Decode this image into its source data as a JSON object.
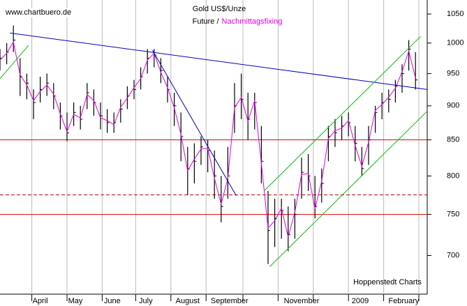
{
  "chart_data": {
    "type": "ohlc",
    "title": "Gold US$/Unze",
    "subtitle": [
      {
        "text": "Future /",
        "color": "#000000"
      },
      {
        "text": "Nachmittagsfixing",
        "color": "#e000e0"
      }
    ],
    "source": "www.chartbuero.de",
    "credit": "Hoppenstedt Charts",
    "x": [
      0,
      4,
      8,
      12,
      16,
      20,
      24,
      28,
      32,
      36,
      40,
      44,
      48,
      52,
      56,
      60,
      64,
      68,
      72,
      76,
      80,
      84,
      88,
      92,
      96,
      100,
      104,
      108,
      112,
      116,
      120,
      124,
      128,
      132,
      136,
      140,
      144,
      148,
      152,
      156,
      160,
      164,
      168,
      172,
      176,
      180,
      184,
      188,
      192,
      196,
      200,
      204,
      208,
      212,
      216,
      220,
      224,
      228,
      232,
      236,
      240,
      244,
      248
    ],
    "high": [
      990,
      1000,
      1030,
      975,
      950,
      925,
      945,
      950,
      935,
      905,
      890,
      905,
      900,
      935,
      925,
      905,
      895,
      890,
      910,
      930,
      940,
      960,
      990,
      990,
      975,
      945,
      920,
      890,
      840,
      845,
      855,
      850,
      835,
      800,
      840,
      935,
      950,
      920,
      920,
      870,
      780,
      770,
      770,
      760,
      770,
      825,
      830,
      800,
      810,
      870,
      880,
      885,
      890,
      870,
      840,
      870,
      900,
      920,
      925,
      940,
      965,
      1005,
      985
    ],
    "low": [
      955,
      965,
      985,
      915,
      910,
      880,
      905,
      915,
      895,
      865,
      848,
      870,
      865,
      895,
      885,
      865,
      860,
      860,
      875,
      895,
      910,
      925,
      950,
      960,
      935,
      905,
      870,
      820,
      775,
      790,
      815,
      805,
      770,
      740,
      770,
      860,
      880,
      850,
      865,
      790,
      690,
      710,
      720,
      705,
      720,
      770,
      780,
      745,
      765,
      820,
      840,
      850,
      855,
      820,
      800,
      815,
      860,
      880,
      890,
      905,
      920,
      955,
      925
    ],
    "close": [
      975,
      985,
      1005,
      945,
      935,
      905,
      925,
      935,
      915,
      885,
      860,
      890,
      880,
      920,
      905,
      885,
      875,
      875,
      895,
      915,
      925,
      945,
      975,
      980,
      955,
      925,
      900,
      855,
      810,
      820,
      840,
      835,
      800,
      760,
      800,
      900,
      910,
      880,
      905,
      820,
      730,
      745,
      755,
      725,
      750,
      805,
      800,
      760,
      790,
      855,
      860,
      870,
      875,
      845,
      810,
      850,
      890,
      905,
      910,
      930,
      950,
      990,
      940
    ],
    "fixing": [
      972,
      983,
      1002,
      948,
      932,
      908,
      922,
      932,
      918,
      888,
      862,
      887,
      882,
      917,
      908,
      882,
      878,
      872,
      898,
      912,
      928,
      942,
      972,
      983,
      952,
      928,
      897,
      858,
      807,
      823,
      837,
      838,
      797,
      763,
      797,
      897,
      913,
      877,
      908,
      817,
      733,
      742,
      758,
      722,
      753,
      802,
      803,
      757,
      793,
      852,
      863,
      867,
      878,
      842,
      813,
      847,
      893,
      902,
      913,
      927,
      953,
      987,
      943
    ],
    "bar_color": "#000000",
    "fixing_color": "#e000e0",
    "xlim": [
      0,
      255
    ],
    "ylim": [
      656,
      1075
    ],
    "log_y": true,
    "yticks": [
      700,
      750,
      800,
      850,
      900,
      950,
      1000,
      1050
    ],
    "xgrid": [
      19,
      40,
      61,
      81,
      102,
      123,
      145,
      166,
      187,
      208,
      229,
      250
    ],
    "xticks": [
      {
        "value": 24,
        "label": "April"
      },
      {
        "value": 45,
        "label": "May"
      },
      {
        "value": 67,
        "label": "June"
      },
      {
        "value": 87,
        "label": "July"
      },
      {
        "value": 112,
        "label": "August"
      },
      {
        "value": 137,
        "label": "September"
      },
      {
        "value": 180,
        "label": "November"
      },
      {
        "value": 215,
        "label": "2009"
      },
      {
        "value": 241,
        "label": "February"
      }
    ],
    "lines": [
      {
        "x": [
          6,
          255
        ],
        "y": [
          1017,
          925
        ],
        "color": "#0000c0"
      },
      {
        "x": [
          91,
          141
        ],
        "y": [
          988,
          774
        ],
        "color": "#0000c0"
      },
      {
        "x": [
          0,
          17
        ],
        "y": [
          942,
          996
        ],
        "color": "#00c000"
      },
      {
        "x": [
          158,
          251
        ],
        "y": [
          781,
          1011
        ],
        "color": "#00c000"
      },
      {
        "x": [
          161,
          255
        ],
        "y": [
          687,
          892
        ],
        "color": "#00c000"
      }
    ],
    "hlines": [
      {
        "value": 850,
        "color": "#e00000",
        "dash": false
      },
      {
        "value": 775,
        "color": "#c00000",
        "dash": true
      },
      {
        "value": 750,
        "color": "#e00000",
        "dash": false
      }
    ]
  }
}
